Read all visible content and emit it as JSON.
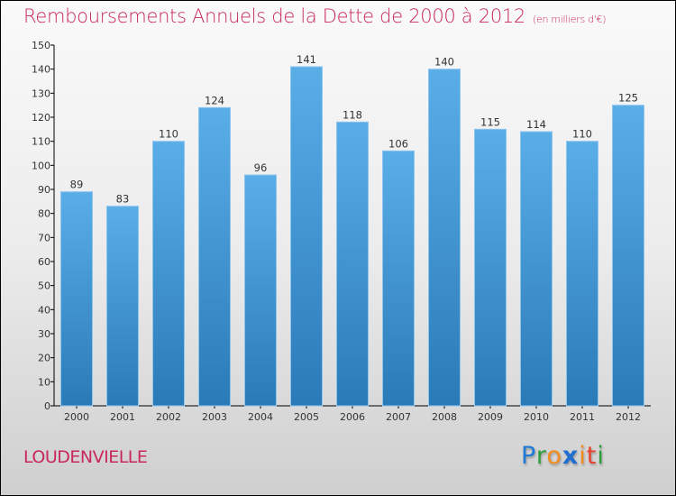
{
  "header": {
    "title": "Remboursements Annuels de la Dette de 2000 à 2012",
    "unit": "(en milliers d'€)"
  },
  "footer": {
    "commune": "LOUDENVIELLE",
    "logo": {
      "letters": [
        {
          "ch": "P",
          "color": "#1f7ad6"
        },
        {
          "ch": "r",
          "color": "#2e9e3a"
        },
        {
          "ch": "o",
          "color": "#f28c1e"
        },
        {
          "ch": "x",
          "color": "#1f6ed0"
        },
        {
          "ch": "i",
          "color": "#f28c1e"
        },
        {
          "ch": "t",
          "color": "#e8412d"
        },
        {
          "ch": "i",
          "color": "#2e9e3a"
        }
      ]
    }
  },
  "chart_data": {
    "type": "bar",
    "title": "Remboursements Annuels de la Dette de 2000 à 2012",
    "subtitle": "(en milliers d'€)",
    "xlabel": "",
    "ylabel": "",
    "categories": [
      "2000",
      "2001",
      "2002",
      "2003",
      "2004",
      "2005",
      "2006",
      "2007",
      "2008",
      "2009",
      "2010",
      "2011",
      "2012"
    ],
    "values": [
      89,
      83,
      110,
      124,
      96,
      141,
      118,
      106,
      140,
      115,
      114,
      110,
      125
    ],
    "ylim": [
      0,
      150
    ],
    "yticks": [
      0,
      10,
      20,
      30,
      40,
      50,
      60,
      70,
      80,
      90,
      100,
      110,
      120,
      130,
      140,
      150
    ],
    "grid": false,
    "bar_color_top": "#5aaee8",
    "bar_color_bottom": "#2a7ab8"
  }
}
